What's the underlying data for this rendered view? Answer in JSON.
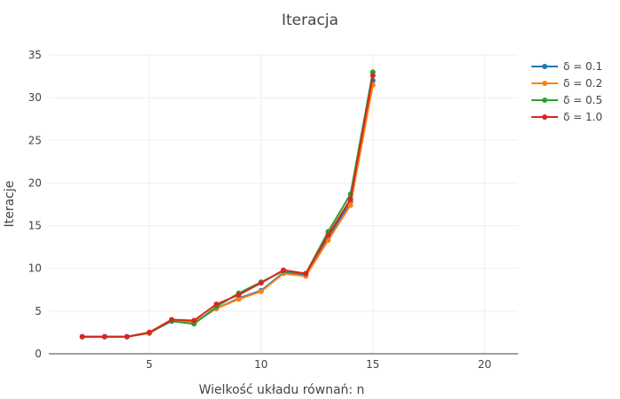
{
  "chart_data": {
    "type": "line",
    "title": "Iteracja",
    "xlabel": "Wielkość układu równań: n",
    "ylabel": "Iteracje",
    "xlim": [
      0.5,
      21.5
    ],
    "ylim": [
      0,
      35
    ],
    "xticks": [
      5,
      10,
      15,
      20
    ],
    "yticks": [
      0,
      5,
      10,
      15,
      20,
      25,
      30,
      35
    ],
    "grid": true,
    "legend_position": "top-right",
    "x": [
      2,
      3,
      4,
      5,
      6,
      7,
      8,
      9,
      10,
      11,
      12,
      13,
      14,
      15
    ],
    "series": [
      {
        "name": "δ = 0.1",
        "color": "#1f77b4",
        "values": [
          2,
          2,
          2,
          2.4,
          3.9,
          3.6,
          5.3,
          6.5,
          7.4,
          9.5,
          9.2,
          13.6,
          17.8,
          32.0
        ]
      },
      {
        "name": "δ = 0.2",
        "color": "#ff7f0e",
        "values": [
          2,
          2,
          2,
          2.4,
          3.9,
          3.7,
          5.3,
          6.4,
          7.3,
          9.4,
          9.1,
          13.3,
          17.4,
          31.5
        ]
      },
      {
        "name": "δ = 0.5",
        "color": "#2ca02c",
        "values": [
          2,
          2,
          2,
          2.5,
          3.8,
          3.5,
          5.5,
          7.1,
          8.4,
          9.7,
          9.4,
          14.3,
          18.7,
          33.0
        ]
      },
      {
        "name": "δ = 1.0",
        "color": "#d62728",
        "values": [
          2,
          2,
          2,
          2.5,
          4.0,
          3.9,
          5.8,
          6.9,
          8.3,
          9.8,
          9.4,
          13.9,
          18.1,
          32.6
        ]
      }
    ]
  }
}
